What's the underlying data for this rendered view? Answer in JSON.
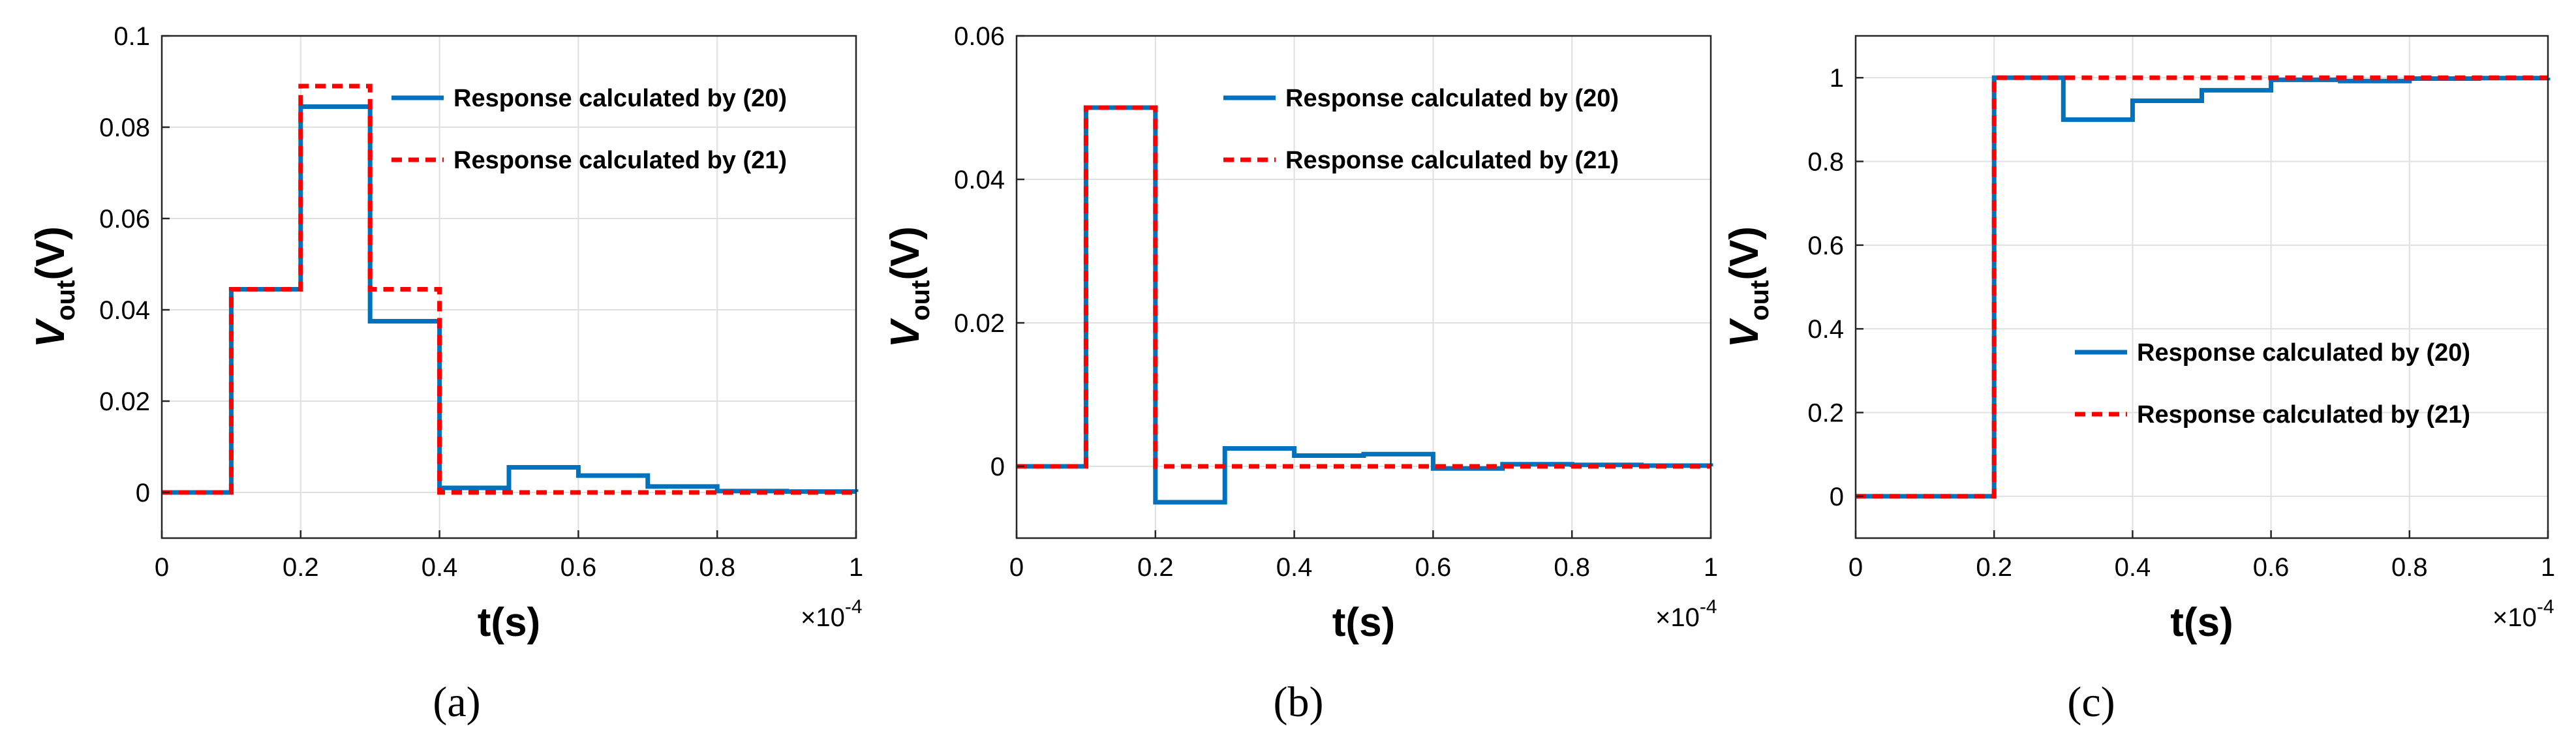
{
  "colors": {
    "series1": "#0072BD",
    "series2": "#FF0000",
    "grid": "#e0e0e0",
    "axis": "#262626"
  },
  "chart_data": [
    {
      "type": "line",
      "panel_label": "(a)",
      "xlabel": "t(s)",
      "ylabel_main": "V",
      "ylabel_sub": "out",
      "ylabel_unit": "(V)",
      "x_multiplier": "×10",
      "x_exponent": "-4",
      "xlim": [
        0,
        1
      ],
      "ylim": [
        -0.01,
        0.1
      ],
      "xticks": [
        0,
        0.2,
        0.4,
        0.6,
        0.8,
        1
      ],
      "xtick_labels": [
        "0",
        "0.2",
        "0.4",
        "0.6",
        "0.8",
        "1"
      ],
      "yticks": [
        0,
        0.02,
        0.04,
        0.06,
        0.08,
        0.1
      ],
      "ytick_labels": [
        "0",
        "0.02",
        "0.04",
        "0.06",
        "0.08",
        "0.1"
      ],
      "grid": true,
      "legend_position": "top-right",
      "series": [
        {
          "name": "Response calculated by (20)",
          "style": "solid",
          "x": [
            0,
            0.1,
            0.2,
            0.3,
            0.4,
            0.5,
            0.6,
            0.7,
            0.8,
            0.9,
            1
          ],
          "y": [
            0,
            0.0445,
            0.0845,
            0.0375,
            0.001,
            0.0055,
            0.0037,
            0.0013,
            0.0003,
            0.0002,
            0.0001
          ]
        },
        {
          "name": "Response calculated by (21)",
          "style": "dashed",
          "x": [
            0,
            0.1,
            0.2,
            0.3,
            0.4,
            0.5,
            0.6,
            0.7,
            0.8,
            0.9,
            1
          ],
          "y": [
            0,
            0.0445,
            0.089,
            0.0445,
            0,
            0,
            0,
            0,
            0,
            0,
            0
          ]
        }
      ]
    },
    {
      "type": "line",
      "panel_label": "(b)",
      "xlabel": "t(s)",
      "ylabel_main": "V",
      "ylabel_sub": "out",
      "ylabel_unit": "(V)",
      "x_multiplier": "×10",
      "x_exponent": "-4",
      "xlim": [
        0,
        1
      ],
      "ylim": [
        -0.01,
        0.06
      ],
      "xticks": [
        0,
        0.2,
        0.4,
        0.6,
        0.8,
        1
      ],
      "xtick_labels": [
        "0",
        "0.2",
        "0.4",
        "0.6",
        "0.8",
        "1"
      ],
      "yticks": [
        0,
        0.02,
        0.04,
        0.06
      ],
      "ytick_labels": [
        "0",
        "0.02",
        "0.04",
        "0.06"
      ],
      "grid": true,
      "legend_position": "top-right",
      "series": [
        {
          "name": "Response calculated by (20)",
          "style": "solid",
          "x": [
            0,
            0.1,
            0.2,
            0.3,
            0.4,
            0.5,
            0.6,
            0.7,
            0.8,
            0.9,
            1
          ],
          "y": [
            0,
            0.05,
            -0.005,
            0.0025,
            0.0015,
            0.0017,
            -0.0003,
            0.0003,
            0.0002,
            0.0001,
            0
          ]
        },
        {
          "name": "Response calculated by (21)",
          "style": "dashed",
          "x": [
            0,
            0.1,
            0.2,
            0.3,
            0.4,
            0.5,
            0.6,
            0.7,
            0.8,
            0.9,
            1
          ],
          "y": [
            0,
            0.05,
            0,
            0,
            0,
            0,
            0,
            0,
            0,
            0,
            0
          ]
        }
      ]
    },
    {
      "type": "line",
      "panel_label": "(c)",
      "xlabel": "t(s)",
      "ylabel_main": "V",
      "ylabel_sub": "out",
      "ylabel_unit": "(V)",
      "x_multiplier": "×10",
      "x_exponent": "-4",
      "xlim": [
        0,
        1
      ],
      "ylim": [
        -0.1,
        1.1
      ],
      "xticks": [
        0,
        0.2,
        0.4,
        0.6,
        0.8,
        1
      ],
      "xtick_labels": [
        "0",
        "0.2",
        "0.4",
        "0.6",
        "0.8",
        "1"
      ],
      "yticks": [
        0,
        0.2,
        0.4,
        0.6,
        0.8,
        1
      ],
      "ytick_labels": [
        "0",
        "0.2",
        "0.4",
        "0.6",
        "0.8",
        "1"
      ],
      "grid": true,
      "legend_position": "center-right",
      "series": [
        {
          "name": "Response calculated by (20)",
          "style": "solid",
          "x": [
            0,
            0.1,
            0.2,
            0.3,
            0.4,
            0.5,
            0.6,
            0.7,
            0.8,
            0.9,
            1
          ],
          "y": [
            0,
            0,
            1,
            0.9,
            0.945,
            0.97,
            0.995,
            0.992,
            0.998,
            0.999,
            1
          ]
        },
        {
          "name": "Response calculated by (21)",
          "style": "dashed",
          "x": [
            0,
            0.1,
            0.2,
            0.3,
            0.4,
            0.5,
            0.6,
            0.7,
            0.8,
            0.9,
            1
          ],
          "y": [
            0,
            0,
            1,
            1,
            1,
            1,
            1,
            1,
            1,
            1,
            1
          ]
        }
      ]
    }
  ]
}
